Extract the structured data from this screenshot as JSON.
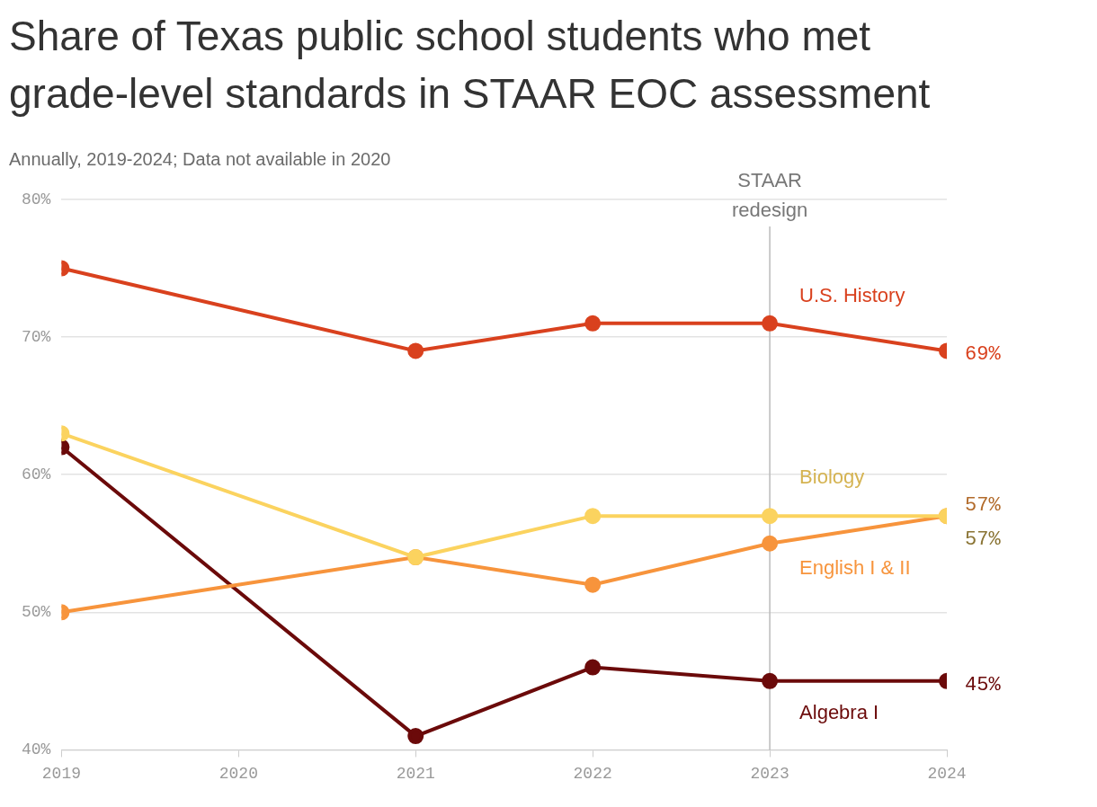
{
  "chart_data": {
    "type": "line",
    "title": "Share of Texas public school students who met grade-level standards in STAAR EOC assessment",
    "subtitle": "Annually, 2019-2024; Data not available in 2020",
    "x": [
      2019,
      2021,
      2022,
      2023,
      2024
    ],
    "xlim": [
      2019,
      2024
    ],
    "xticks": [
      2019,
      2020,
      2021,
      2022,
      2023,
      2024
    ],
    "ylim": [
      40,
      80
    ],
    "yticks": [
      {
        "value": 40,
        "label": "40%"
      },
      {
        "value": 50,
        "label": "50%"
      },
      {
        "value": 60,
        "label": "60%"
      },
      {
        "value": 70,
        "label": "70%"
      },
      {
        "value": 80,
        "label": "80%"
      }
    ],
    "grid": true,
    "marker": "circle",
    "line_style": "solid",
    "annotations": [
      {
        "x": 2023,
        "text": "STAAR redesign"
      }
    ],
    "series": [
      {
        "name": "U.S. History",
        "color": "#d9411e",
        "values": [
          75,
          69,
          71,
          71,
          69
        ],
        "value_labels": [
          null,
          null,
          null,
          null,
          "69%"
        ]
      },
      {
        "name": "Biology",
        "color": "#fbd35f",
        "values": [
          63,
          54,
          57,
          57,
          57
        ],
        "value_labels": [
          null,
          null,
          null,
          null,
          "57%"
        ]
      },
      {
        "name": "English I & II",
        "color": "#f7943c",
        "values": [
          50,
          54,
          52,
          55,
          57
        ],
        "value_labels": [
          null,
          null,
          null,
          null,
          "57%"
        ]
      },
      {
        "name": "Algebra I",
        "color": "#6b0a0a",
        "values": [
          62,
          41,
          46,
          45,
          45
        ],
        "value_labels": [
          null,
          null,
          null,
          null,
          "45%"
        ]
      }
    ]
  }
}
